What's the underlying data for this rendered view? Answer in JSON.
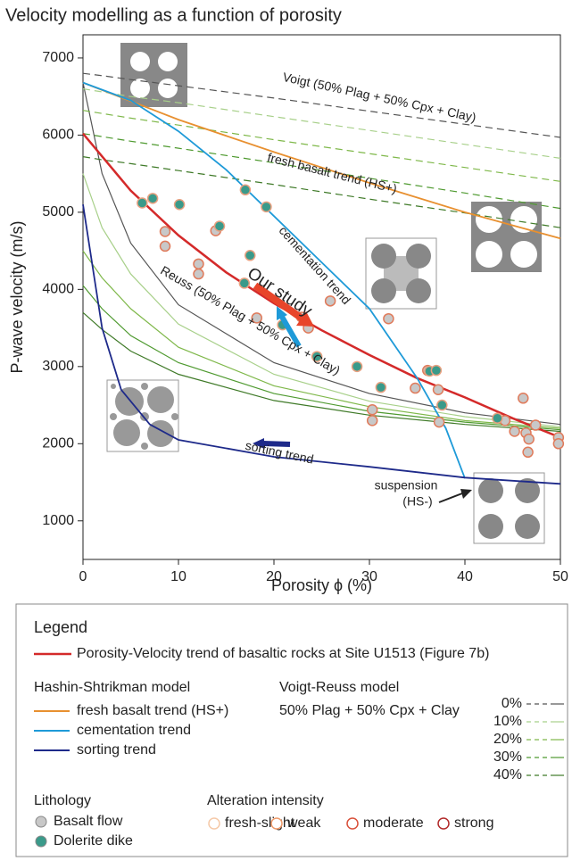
{
  "chart_data": {
    "type": "line",
    "title": "Velocity modelling as a function of porosity",
    "x_label": "Porosity ϕ (%)",
    "y_label": "P-wave velocity (m/s)",
    "xlim": [
      0,
      50
    ],
    "ylim": [
      500,
      7300
    ],
    "xticks": [
      0,
      10,
      20,
      30,
      40,
      50
    ],
    "yticks": [
      1000,
      2000,
      3000,
      4000,
      5000,
      6000,
      7000
    ],
    "lines": [
      {
        "name": "Porosity-Velocity trend of basaltic rocks at Site U1513 (Figure 7b)",
        "color": "#d42a2a",
        "x": [
          0,
          5,
          10,
          15,
          20,
          25,
          30,
          35,
          40,
          45,
          50
        ],
        "y": [
          6020,
          5280,
          4700,
          4220,
          3820,
          3470,
          3150,
          2850,
          2600,
          2330,
          2080
        ]
      },
      {
        "name": "fresh basalt trend (HS+)",
        "color": "#e89030",
        "x": [
          0,
          10,
          20,
          30,
          40,
          50
        ],
        "y": [
          6680,
          6200,
          5780,
          5380,
          5000,
          4660
        ]
      },
      {
        "name": "cementation trend",
        "color": "#1e9ad8",
        "x": [
          0,
          5,
          10,
          15,
          20,
          25,
          30,
          35,
          38,
          40
        ],
        "y": [
          6680,
          6450,
          6050,
          5550,
          4950,
          4350,
          3750,
          2850,
          2200,
          1550
        ]
      },
      {
        "name": "sorting trend",
        "color": "#1e2a8a",
        "x": [
          0,
          2,
          4,
          7,
          10,
          20,
          30,
          40,
          50
        ],
        "y": [
          5100,
          3500,
          2700,
          2250,
          2050,
          1830,
          1700,
          1560,
          1480
        ]
      }
    ],
    "voigt_reuss": {
      "title": "Voigt-Reuss model",
      "subtitle": "50% Plag + 50% Cpx + Clay",
      "x": [
        0,
        2,
        5,
        10,
        20,
        30,
        40,
        50
      ],
      "levels": [
        {
          "name": "0%",
          "color": "#555555",
          "voigt": [
            6800,
            6770,
            6720,
            6640,
            6480,
            6310,
            6140,
            5970
          ],
          "reuss": [
            6680,
            5500,
            4600,
            3800,
            3050,
            2650,
            2400,
            2250
          ]
        },
        {
          "name": "10%",
          "color": "#a8d08a",
          "voigt": [
            6600,
            6560,
            6500,
            6420,
            6240,
            6060,
            5880,
            5700
          ],
          "reuss": [
            5500,
            4800,
            4200,
            3550,
            2900,
            2550,
            2350,
            2220
          ]
        },
        {
          "name": "20%",
          "color": "#7fb84a",
          "voigt": [
            6320,
            6280,
            6220,
            6130,
            5940,
            5760,
            5580,
            5400
          ],
          "reuss": [
            4500,
            4150,
            3750,
            3250,
            2750,
            2480,
            2300,
            2200
          ]
        },
        {
          "name": "30%",
          "color": "#4f9a30",
          "voigt": [
            6020,
            5980,
            5920,
            5830,
            5640,
            5440,
            5250,
            5050
          ],
          "reuss": [
            4050,
            3750,
            3400,
            3050,
            2650,
            2420,
            2280,
            2180
          ]
        },
        {
          "name": "40%",
          "color": "#3f7a28",
          "voigt": [
            5720,
            5680,
            5630,
            5540,
            5360,
            5170,
            4990,
            4800
          ],
          "reuss": [
            3700,
            3480,
            3200,
            2900,
            2560,
            2370,
            2250,
            2160
          ]
        }
      ]
    },
    "hs_title": "Hashin-Shtrikman model",
    "points": [
      {
        "name": "Basalt flow",
        "color": "#c8c8c8",
        "edge": "#e07a5a",
        "x": [
          8.6,
          8.6,
          12.1,
          12.1,
          13.9,
          18.2,
          22.9,
          23.6,
          25.9,
          30.3,
          30.3,
          32,
          34.8,
          36.1,
          37.2,
          37.3,
          44.2,
          45.2,
          46.1,
          46.4,
          46.6,
          46.7,
          47.4,
          49.8,
          49.8
        ],
        "y": [
          4750,
          4560,
          4330,
          4200,
          4760,
          3630,
          3640,
          3500,
          3850,
          2440,
          2300,
          3620,
          2720,
          2950,
          2700,
          2280,
          2300,
          2160,
          2590,
          2140,
          1890,
          2060,
          2240,
          2080,
          2000
        ]
      },
      {
        "name": "Dolerite dike",
        "color": "#3a9a8a",
        "edge": "#e8a080",
        "x": [
          6.2,
          7.3,
          10.1,
          14.3,
          17,
          19.2,
          17.5,
          16.9,
          20.9,
          24.5,
          28.7,
          31.2,
          36.3,
          37,
          37.6,
          43.4
        ],
        "y": [
          5120,
          5180,
          5100,
          4820,
          5290,
          5070,
          4440,
          4080,
          3540,
          3130,
          3000,
          2730,
          2940,
          2950,
          2500,
          2330
        ]
      }
    ],
    "annotations": [
      "Voigt (50% Plag + 50% Cpx + Clay)",
      "Our study",
      "Reuss (50% Plag + 50% Cpx + Clay)",
      "suspension",
      "(HS-)"
    ],
    "legend_title": "Legend",
    "lithology_title": "Lithology",
    "alteration": {
      "title": "Alteration intensity",
      "levels": [
        {
          "name": "fresh-slight",
          "color": "#f5c9a8"
        },
        {
          "name": "weak",
          "color": "#ee9a6a"
        },
        {
          "name": "moderate",
          "color": "#d9503a"
        },
        {
          "name": "strong",
          "color": "#b22a2a"
        }
      ]
    }
  }
}
